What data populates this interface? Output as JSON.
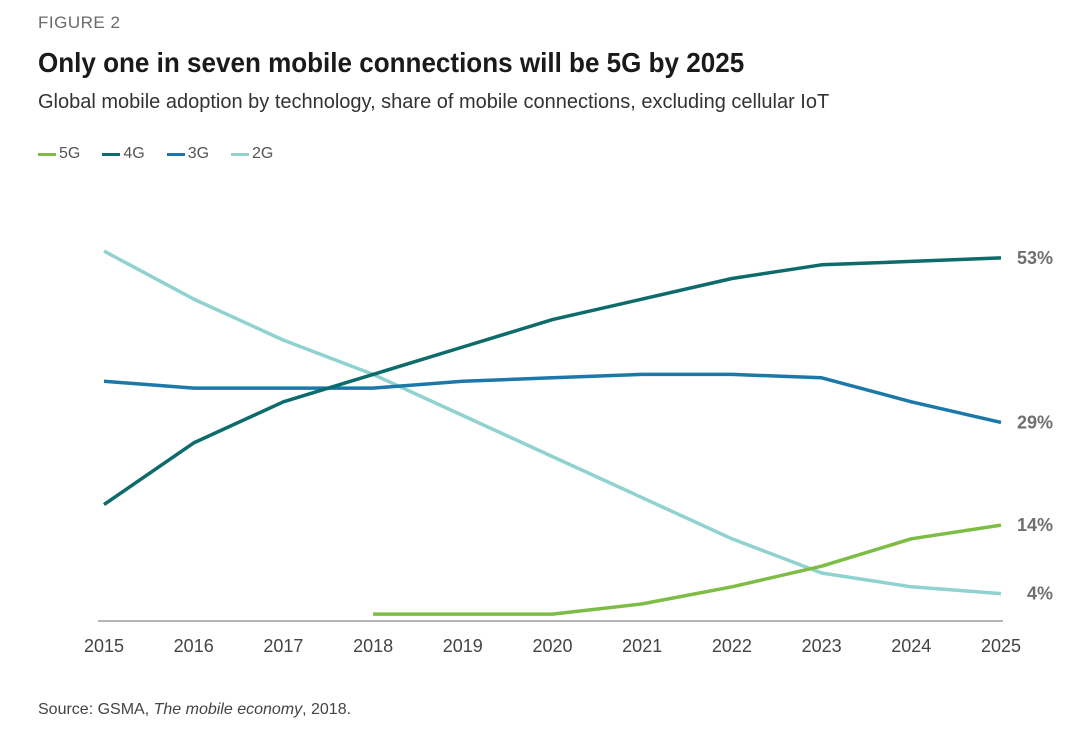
{
  "header": {
    "figure_label": "FIGURE 2",
    "title": "Only one in seven mobile connections will be 5G by 2025",
    "subtitle": "Global mobile adoption by technology, share of mobile connections, excluding cellular IoT"
  },
  "source": {
    "prefix": "Source: GSMA, ",
    "publication": "The mobile economy",
    "suffix": ", 2018."
  },
  "colors": {
    "5G": "#7dbd46",
    "4G": "#0e6b6b",
    "3G": "#1c78a8",
    "2G": "#8fd2cf",
    "axis": "#b5b5b5"
  },
  "chart_data": {
    "type": "line",
    "title": "Only one in seven mobile connections will be 5G by 2025",
    "xlabel": "",
    "ylabel": "",
    "grid": false,
    "legend_position": "top-left",
    "x": [
      "2015",
      "2016",
      "2017",
      "2018",
      "2019",
      "2020",
      "2021",
      "2022",
      "2023",
      "2024",
      "2025"
    ],
    "ylim": [
      0,
      60
    ],
    "series": [
      {
        "name": "5G",
        "color_key": "5G",
        "values": [
          null,
          null,
          null,
          1,
          1,
          1,
          2.5,
          5,
          8,
          12,
          14
        ],
        "end_label": "14%"
      },
      {
        "name": "4G",
        "color_key": "4G",
        "values": [
          17,
          26,
          32,
          36,
          40,
          44,
          47,
          50,
          52,
          52.5,
          53
        ],
        "end_label": "53%"
      },
      {
        "name": "3G",
        "color_key": "3G",
        "values": [
          35,
          34,
          34,
          34,
          35,
          35.5,
          36,
          36,
          35.5,
          32,
          29
        ],
        "end_label": "29%"
      },
      {
        "name": "2G",
        "color_key": "2G",
        "values": [
          54,
          47,
          41,
          36,
          30,
          24,
          18,
          12,
          7,
          5,
          4
        ],
        "end_label": "4%"
      }
    ]
  }
}
